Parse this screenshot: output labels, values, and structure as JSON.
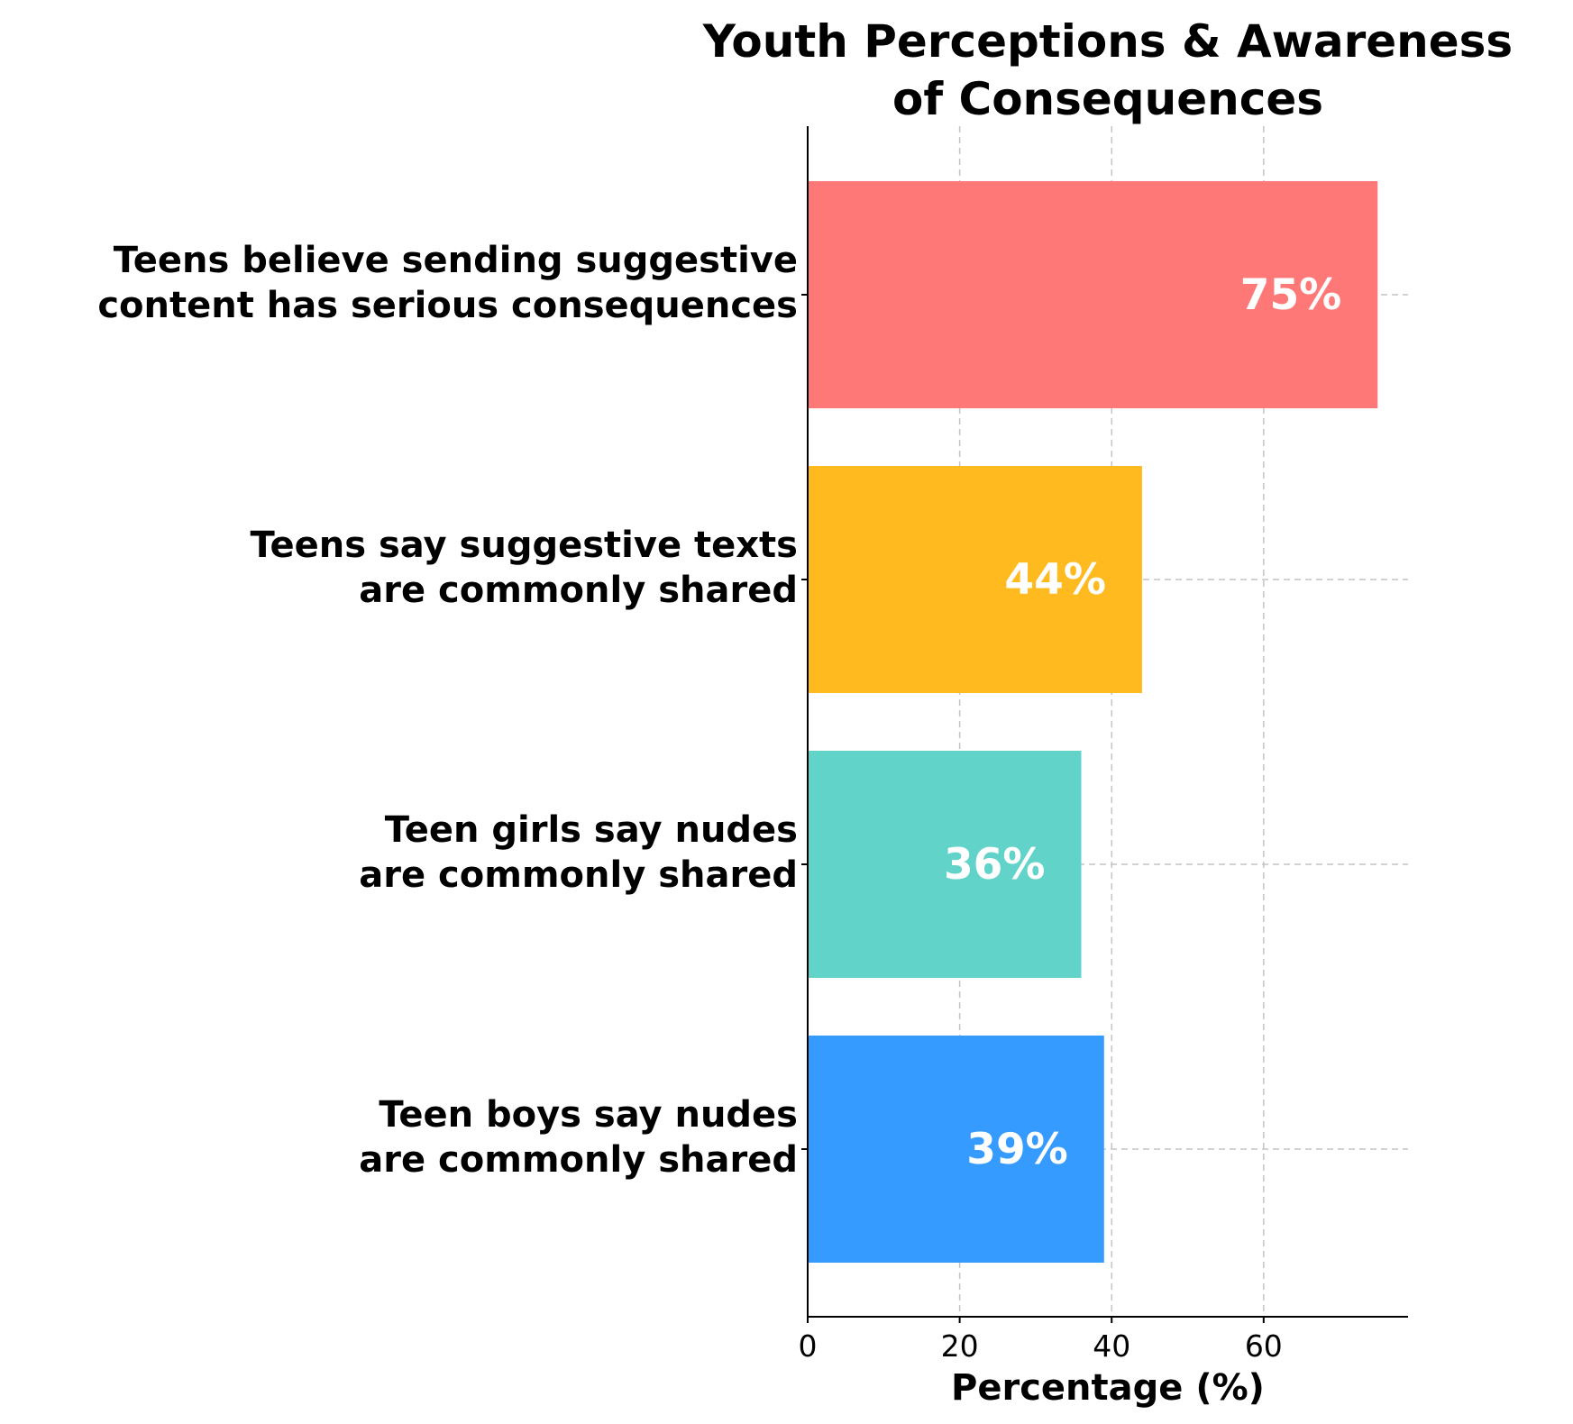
{
  "chart_data": {
    "type": "bar",
    "orientation": "horizontal",
    "title": [
      "Youth Perceptions & Awareness",
      "of Consequences"
    ],
    "xlabel": "Percentage (%)",
    "ylabel": "",
    "xlim": [
      0,
      79
    ],
    "xticks": [
      0,
      20,
      40,
      60
    ],
    "grid": true,
    "categories": [
      [
        "Teens believe sending suggestive",
        "content has serious consequences"
      ],
      [
        "Teens say suggestive texts",
        "are commonly shared"
      ],
      [
        "Teen girls say nudes",
        "are commonly shared"
      ],
      [
        "Teen boys say nudes",
        "are commonly shared"
      ]
    ],
    "values": [
      75,
      44,
      36,
      39
    ],
    "value_labels": [
      "75%",
      "44%",
      "36%",
      "39%"
    ],
    "colors": [
      "#FF7878",
      "#FFBA1F",
      "#62D3C9",
      "#369BFF"
    ]
  }
}
